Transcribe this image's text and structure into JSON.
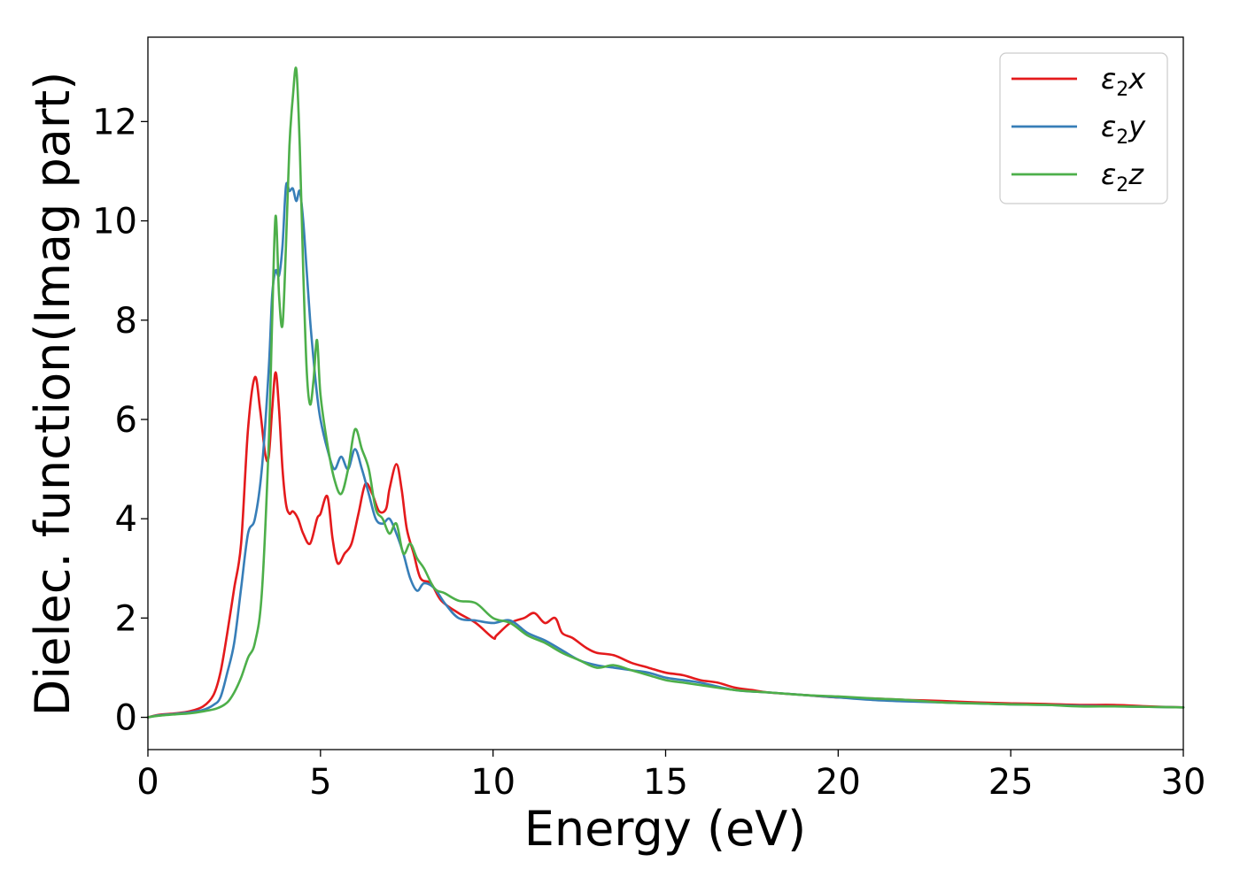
{
  "chart_data": {
    "type": "line",
    "xlabel": "Energy (eV)",
    "ylabel": "Dielec. function(Imag part)",
    "xlim": [
      0,
      30
    ],
    "ylim": [
      -0.65,
      13.7
    ],
    "xticks": [
      0,
      5,
      10,
      15,
      20,
      25,
      30
    ],
    "yticks": [
      0,
      2,
      4,
      6,
      8,
      10,
      12
    ],
    "grid": false,
    "legend_position": "top-right",
    "series": [
      {
        "name": "ε₂x",
        "legend": {
          "base": "ε",
          "sub": "2",
          "suffix": "x"
        },
        "color": "#e41a1c",
        "x": [
          0,
          0.3,
          0.8,
          1.2,
          1.6,
          1.9,
          2.1,
          2.3,
          2.5,
          2.7,
          2.9,
          3.1,
          3.25,
          3.4,
          3.5,
          3.6,
          3.7,
          3.8,
          3.9,
          4.0,
          4.1,
          4.2,
          4.35,
          4.5,
          4.7,
          4.9,
          5.0,
          5.2,
          5.35,
          5.5,
          5.7,
          5.9,
          6.1,
          6.3,
          6.5,
          6.7,
          6.9,
          7.0,
          7.2,
          7.35,
          7.5,
          7.7,
          7.9,
          8.2,
          8.5,
          9.0,
          9.5,
          10.0,
          10.1,
          10.5,
          10.9,
          11.2,
          11.5,
          11.8,
          12.0,
          12.3,
          12.7,
          13.0,
          13.5,
          14.0,
          14.5,
          15.0,
          15.5,
          16.0,
          16.5,
          17.0,
          17.5,
          18.0,
          19.0,
          20.0,
          21.0,
          22.0,
          23.0,
          24.0,
          25.0,
          26.0,
          27.0,
          28.0,
          29.0,
          30.0
        ],
        "y": [
          0.0,
          0.05,
          0.08,
          0.12,
          0.22,
          0.45,
          0.9,
          1.7,
          2.6,
          3.5,
          5.8,
          6.85,
          6.2,
          5.3,
          5.25,
          6.2,
          6.95,
          6.2,
          5.0,
          4.3,
          4.1,
          4.15,
          4.0,
          3.7,
          3.5,
          4.0,
          4.1,
          4.45,
          3.6,
          3.1,
          3.3,
          3.5,
          4.1,
          4.7,
          4.5,
          4.15,
          4.2,
          4.6,
          5.1,
          4.6,
          3.8,
          3.3,
          2.8,
          2.7,
          2.35,
          2.1,
          1.9,
          1.6,
          1.65,
          1.9,
          2.0,
          2.1,
          1.9,
          2.0,
          1.7,
          1.6,
          1.4,
          1.3,
          1.25,
          1.1,
          1.0,
          0.9,
          0.85,
          0.75,
          0.7,
          0.6,
          0.55,
          0.5,
          0.45,
          0.4,
          0.38,
          0.35,
          0.33,
          0.3,
          0.28,
          0.27,
          0.25,
          0.25,
          0.22,
          0.2
        ]
      },
      {
        "name": "ε₂y",
        "legend": {
          "base": "ε",
          "sub": "2",
          "suffix": "y"
        },
        "color": "#377eb8",
        "x": [
          0,
          0.3,
          0.8,
          1.2,
          1.6,
          1.9,
          2.1,
          2.3,
          2.5,
          2.7,
          2.9,
          3.1,
          3.3,
          3.5,
          3.6,
          3.7,
          3.8,
          3.9,
          4.0,
          4.1,
          4.2,
          4.3,
          4.4,
          4.5,
          4.6,
          4.7,
          4.8,
          4.9,
          5.0,
          5.2,
          5.4,
          5.6,
          5.8,
          6.0,
          6.2,
          6.4,
          6.6,
          6.8,
          7.0,
          7.2,
          7.4,
          7.6,
          7.8,
          8.0,
          8.3,
          8.6,
          9.0,
          9.5,
          10.0,
          10.5,
          11.0,
          11.5,
          12.0,
          12.5,
          13.0,
          13.5,
          14.0,
          14.5,
          15.0,
          15.5,
          16.0,
          17.0,
          18.0,
          19.0,
          20.0,
          21.0,
          22.0,
          23.0,
          24.0,
          25.0,
          26.0,
          27.0,
          28.0,
          29.0,
          30.0
        ],
        "y": [
          0.0,
          0.04,
          0.07,
          0.1,
          0.15,
          0.25,
          0.4,
          0.9,
          1.5,
          2.6,
          3.7,
          4.0,
          5.0,
          7.0,
          8.5,
          9.0,
          8.9,
          9.5,
          10.7,
          10.6,
          10.65,
          10.4,
          10.6,
          10.0,
          9.0,
          8.0,
          7.2,
          6.5,
          6.0,
          5.4,
          5.0,
          5.25,
          5.0,
          5.4,
          5.0,
          4.5,
          4.0,
          3.9,
          4.0,
          3.7,
          3.3,
          2.8,
          2.55,
          2.7,
          2.6,
          2.3,
          2.0,
          1.95,
          1.9,
          1.95,
          1.7,
          1.55,
          1.35,
          1.15,
          1.05,
          1.0,
          0.95,
          0.9,
          0.8,
          0.75,
          0.7,
          0.55,
          0.5,
          0.45,
          0.4,
          0.35,
          0.32,
          0.3,
          0.28,
          0.26,
          0.25,
          0.23,
          0.22,
          0.21,
          0.2
        ]
      },
      {
        "name": "ε₂z",
        "legend": {
          "base": "ε",
          "sub": "2",
          "suffix": "z"
        },
        "color": "#4daf4a",
        "x": [
          0,
          0.3,
          0.8,
          1.2,
          1.6,
          2.0,
          2.3,
          2.5,
          2.7,
          2.9,
          3.1,
          3.3,
          3.5,
          3.6,
          3.7,
          3.8,
          3.9,
          4.0,
          4.1,
          4.2,
          4.3,
          4.4,
          4.5,
          4.6,
          4.7,
          4.8,
          4.9,
          5.0,
          5.2,
          5.4,
          5.6,
          5.8,
          6.0,
          6.2,
          6.4,
          6.6,
          6.8,
          7.0,
          7.2,
          7.4,
          7.6,
          7.8,
          8.0,
          8.3,
          8.6,
          9.0,
          9.5,
          10.0,
          10.5,
          11.0,
          11.5,
          12.0,
          12.5,
          13.0,
          13.5,
          14.0,
          14.5,
          15.0,
          15.5,
          16.0,
          17.0,
          18.0,
          19.0,
          20.0,
          21.0,
          22.0,
          23.0,
          24.0,
          25.0,
          26.0,
          27.0,
          28.0,
          29.0,
          30.0
        ],
        "y": [
          0.0,
          0.03,
          0.06,
          0.08,
          0.12,
          0.18,
          0.3,
          0.5,
          0.8,
          1.2,
          1.5,
          2.5,
          5.5,
          8.0,
          10.1,
          8.5,
          7.9,
          9.5,
          11.5,
          12.5,
          13.05,
          11.5,
          9.0,
          7.0,
          6.3,
          6.8,
          7.6,
          6.5,
          5.5,
          4.8,
          4.5,
          5.0,
          5.8,
          5.4,
          5.0,
          4.2,
          4.0,
          3.7,
          3.9,
          3.3,
          3.5,
          3.2,
          3.0,
          2.6,
          2.5,
          2.35,
          2.3,
          2.0,
          1.9,
          1.65,
          1.5,
          1.3,
          1.15,
          1.0,
          1.05,
          0.95,
          0.85,
          0.75,
          0.7,
          0.65,
          0.55,
          0.5,
          0.45,
          0.42,
          0.38,
          0.35,
          0.3,
          0.28,
          0.26,
          0.25,
          0.22,
          0.22,
          0.21,
          0.2
        ]
      }
    ]
  }
}
